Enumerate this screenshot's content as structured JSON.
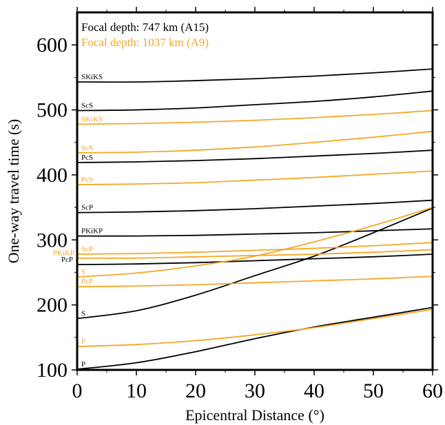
{
  "chart_data": {
    "type": "line",
    "xlabel": "Epicentral Distance (°)",
    "ylabel": "One-way travel time (s)",
    "xlim": [
      0,
      60
    ],
    "ylim": [
      100,
      650
    ],
    "x_ticks": [
      0,
      10,
      20,
      30,
      40,
      50,
      60
    ],
    "x_tick_labels": [
      "0",
      "10",
      "20",
      "30",
      "40",
      "50",
      "60"
    ],
    "y_ticks": [
      100,
      200,
      300,
      400,
      500,
      600
    ],
    "y_tick_labels": [
      "100",
      "200",
      "300",
      "400",
      "500",
      "600"
    ],
    "grid": false,
    "legend_position": "top-left",
    "colors": {
      "A15": "#000000",
      "A9": "#f5a623"
    },
    "legend": [
      {
        "label": "Focal depth:   747 km (A15)",
        "color": "#000000"
      },
      {
        "label": "Focal depth: 1037 km (A9)",
        "color": "#f5a623"
      }
    ],
    "x": [
      0,
      10,
      20,
      30,
      40,
      50,
      60
    ],
    "series": [
      {
        "name": "P",
        "group": "A15",
        "color": "#000000",
        "values": [
          101,
          111,
          128,
          148,
          166,
          181,
          196
        ]
      },
      {
        "name": "S",
        "group": "A15",
        "color": "#000000",
        "values": [
          179,
          191,
          215,
          245,
          275,
          311,
          349
        ]
      },
      {
        "name": "PcP",
        "group": "A15",
        "color": "#000000",
        "values": [
          262,
          263,
          265,
          268,
          271,
          274,
          278
        ]
      },
      {
        "name": "PKiKP",
        "group": "A15",
        "color": "#000000",
        "values": [
          306,
          306,
          307,
          309,
          311,
          314,
          317
        ]
      },
      {
        "name": "ScP",
        "group": "A15",
        "color": "#000000",
        "values": [
          342,
          343,
          345,
          348,
          352,
          356,
          361
        ]
      },
      {
        "name": "PcS",
        "group": "A15",
        "color": "#000000",
        "values": [
          419,
          420,
          422,
          425,
          429,
          433,
          438
        ]
      },
      {
        "name": "ScS",
        "group": "A15",
        "color": "#000000",
        "values": [
          499,
          500,
          503,
          508,
          513,
          520,
          529
        ]
      },
      {
        "name": "SKiKS",
        "group": "A15",
        "color": "#000000",
        "values": [
          543,
          543,
          545,
          548,
          552,
          557,
          563
        ]
      },
      {
        "name": "P",
        "group": "A9",
        "color": "#f5a623",
        "values": [
          136,
          139,
          145,
          154,
          165,
          179,
          193
        ]
      },
      {
        "name": "S",
        "group": "A9",
        "color": "#f5a623",
        "values": [
          243,
          249,
          260,
          275,
          297,
          322,
          350
        ]
      },
      {
        "name": "PcP",
        "group": "A9",
        "color": "#f5a623",
        "values": [
          228,
          229,
          231,
          234,
          237,
          240,
          244
        ]
      },
      {
        "name": "PKiKP",
        "group": "A9",
        "color": "#f5a623",
        "values": [
          272,
          272,
          274,
          276,
          278,
          281,
          285
        ]
      },
      {
        "name": "ScP",
        "group": "A9",
        "color": "#f5a623",
        "values": [
          278,
          279,
          281,
          284,
          287,
          291,
          296
        ]
      },
      {
        "name": "PcS",
        "group": "A9",
        "color": "#f5a623",
        "values": [
          385,
          386,
          388,
          392,
          396,
          401,
          406
        ]
      },
      {
        "name": "ScS",
        "group": "A9",
        "color": "#f5a623",
        "values": [
          434,
          435,
          438,
          443,
          450,
          458,
          467
        ]
      },
      {
        "name": "SKiKS",
        "group": "A9",
        "color": "#f5a623",
        "values": [
          478,
          479,
          481,
          484,
          488,
          493,
          499
        ]
      }
    ]
  }
}
